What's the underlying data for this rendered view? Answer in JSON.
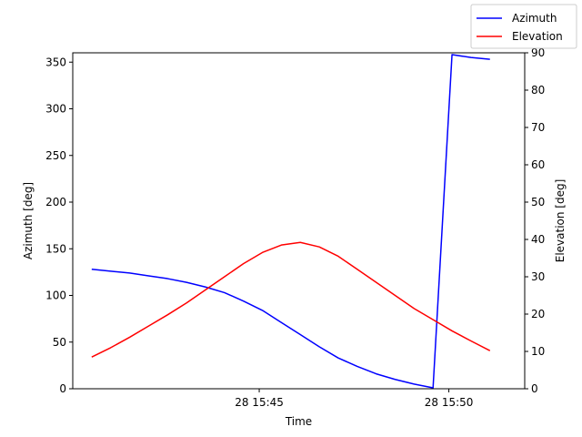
{
  "chart_data": {
    "type": "line",
    "xlabel": "Time",
    "ylabel_left": "Azimuth [deg]",
    "ylabel_right": "Elevation [deg]",
    "x_ticks": [
      {
        "value": "2024-01-28T15:45:00",
        "label": "28 15:45"
      },
      {
        "value": "2024-01-28T15:50:00",
        "label": "28 15:50"
      }
    ],
    "xlim": [
      "2024-01-28T15:40:05",
      "2024-01-28T15:52:00"
    ],
    "y_left_lim": [
      0,
      360
    ],
    "y_left_ticks": [
      0,
      50,
      100,
      150,
      200,
      250,
      300,
      350
    ],
    "y_right_lim": [
      0,
      90
    ],
    "y_right_ticks": [
      0,
      10,
      20,
      30,
      40,
      50,
      60,
      70,
      80,
      90
    ],
    "legend_position": "top-right",
    "series": [
      {
        "name": "Azimuth",
        "axis": "left",
        "color": "#0000ff",
        "points": [
          [
            "2024-01-28T15:40:35",
            128
          ],
          [
            "2024-01-28T15:41:05",
            126
          ],
          [
            "2024-01-28T15:41:35",
            124
          ],
          [
            "2024-01-28T15:42:05",
            121
          ],
          [
            "2024-01-28T15:42:35",
            118
          ],
          [
            "2024-01-28T15:43:05",
            114
          ],
          [
            "2024-01-28T15:43:35",
            109
          ],
          [
            "2024-01-28T15:44:05",
            103
          ],
          [
            "2024-01-28T15:44:35",
            94
          ],
          [
            "2024-01-28T15:45:05",
            84
          ],
          [
            "2024-01-28T15:45:35",
            71
          ],
          [
            "2024-01-28T15:46:05",
            58
          ],
          [
            "2024-01-28T15:46:35",
            45
          ],
          [
            "2024-01-28T15:47:05",
            33
          ],
          [
            "2024-01-28T15:47:35",
            24
          ],
          [
            "2024-01-28T15:48:05",
            16
          ],
          [
            "2024-01-28T15:48:35",
            10
          ],
          [
            "2024-01-28T15:49:05",
            5
          ],
          [
            "2024-01-28T15:49:35",
            1
          ],
          [
            "2024-01-28T15:50:05",
            358
          ],
          [
            "2024-01-28T15:50:35",
            355
          ],
          [
            "2024-01-28T15:51:05",
            353
          ]
        ]
      },
      {
        "name": "Elevation",
        "axis": "right",
        "color": "#ff0000",
        "points": [
          [
            "2024-01-28T15:40:35",
            8.5
          ],
          [
            "2024-01-28T15:41:05",
            11
          ],
          [
            "2024-01-28T15:41:35",
            13.8
          ],
          [
            "2024-01-28T15:42:05",
            16.8
          ],
          [
            "2024-01-28T15:42:35",
            19.8
          ],
          [
            "2024-01-28T15:43:05",
            23
          ],
          [
            "2024-01-28T15:43:35",
            26.5
          ],
          [
            "2024-01-28T15:44:05",
            30
          ],
          [
            "2024-01-28T15:44:35",
            33.5
          ],
          [
            "2024-01-28T15:45:05",
            36.5
          ],
          [
            "2024-01-28T15:45:35",
            38.5
          ],
          [
            "2024-01-28T15:46:05",
            39.2
          ],
          [
            "2024-01-28T15:46:35",
            38
          ],
          [
            "2024-01-28T15:47:05",
            35.5
          ],
          [
            "2024-01-28T15:47:35",
            32
          ],
          [
            "2024-01-28T15:48:05",
            28.5
          ],
          [
            "2024-01-28T15:48:35",
            25
          ],
          [
            "2024-01-28T15:49:05",
            21.5
          ],
          [
            "2024-01-28T15:49:35",
            18.5
          ],
          [
            "2024-01-28T15:50:05",
            15.5
          ],
          [
            "2024-01-28T15:50:35",
            12.8
          ],
          [
            "2024-01-28T15:51:05",
            10.2
          ]
        ]
      }
    ]
  }
}
